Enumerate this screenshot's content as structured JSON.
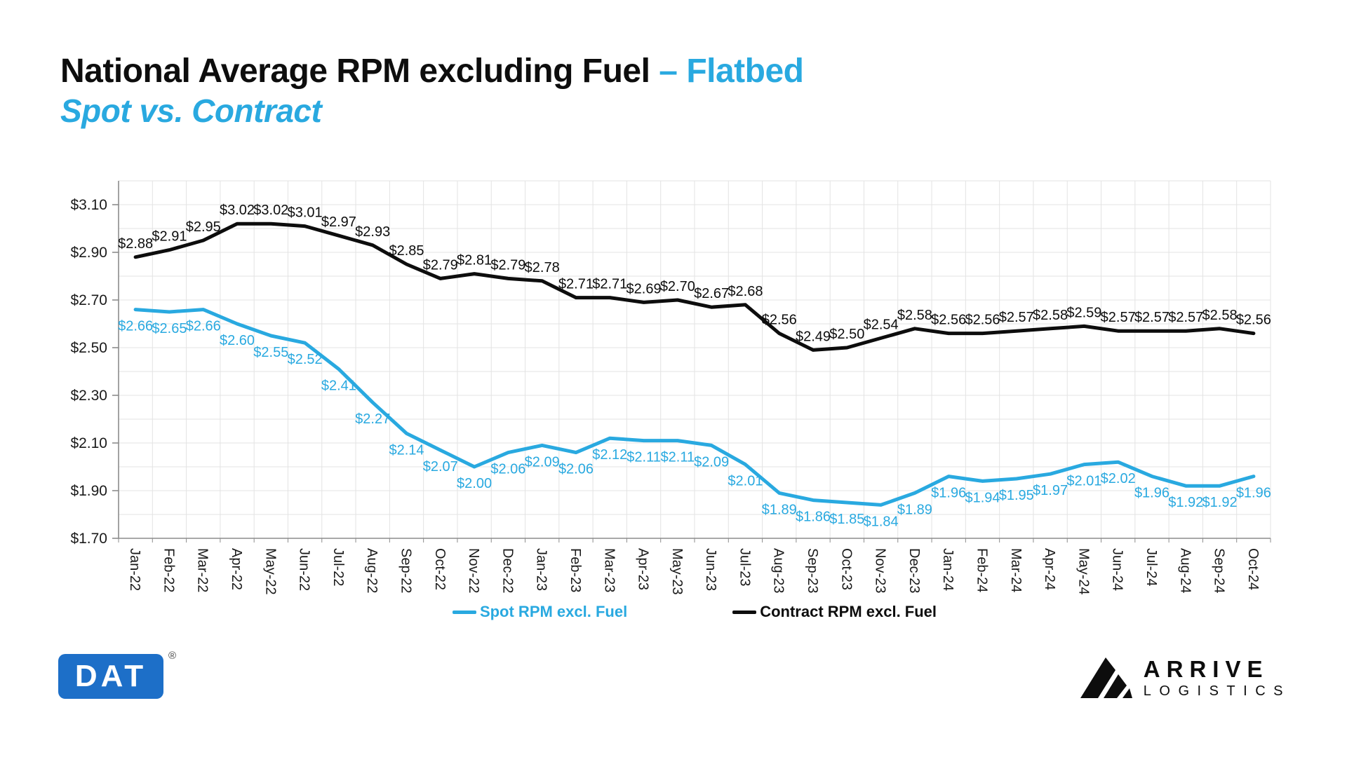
{
  "title": {
    "main": "National Average RPM excluding Fuel ",
    "accent": "– Flatbed",
    "subtitle": "Spot vs. Contract",
    "accent_color": "#29A9E0",
    "text_color": "#0D0D0D"
  },
  "chart_data": {
    "type": "line",
    "title": "National Average RPM excluding Fuel – Flatbed, Spot vs. Contract",
    "categories": [
      "Jan-22",
      "Feb-22",
      "Mar-22",
      "Apr-22",
      "May-22",
      "Jun-22",
      "Jul-22",
      "Aug-22",
      "Sep-22",
      "Oct-22",
      "Nov-22",
      "Dec-22",
      "Jan-23",
      "Feb-23",
      "Mar-23",
      "Apr-23",
      "May-23",
      "Jun-23",
      "Jul-23",
      "Aug-23",
      "Sep-23",
      "Oct-23",
      "Nov-23",
      "Dec-23",
      "Jan-24",
      "Feb-24",
      "Mar-24",
      "Apr-24",
      "May-24",
      "Jun-24",
      "Jul-24",
      "Aug-24",
      "Sep-24",
      "Oct-24"
    ],
    "series": [
      {
        "name": "Spot RPM excl. Fuel",
        "color": "#29A9E0",
        "label_position": "below",
        "values": [
          2.66,
          2.65,
          2.66,
          2.6,
          2.55,
          2.52,
          2.41,
          2.27,
          2.14,
          2.07,
          2.0,
          2.06,
          2.09,
          2.06,
          2.12,
          2.11,
          2.11,
          2.09,
          2.01,
          1.89,
          1.86,
          1.85,
          1.84,
          1.89,
          1.96,
          1.94,
          1.95,
          1.97,
          2.01,
          2.02,
          1.96,
          1.92,
          1.92,
          1.96
        ],
        "labels": [
          "$2.66",
          "$2.65",
          "$2.66",
          "$2.60",
          "$2.55",
          "$2.52",
          "$2.41",
          "$2.27",
          "$2.14",
          "$2.07",
          "$2.00",
          "$2.06",
          "$2.09",
          "$2.06",
          "$2.12",
          "$2.11",
          "$2.11",
          "$2.09",
          "$2.01",
          "$1.89",
          "$1.86",
          "$1.85",
          "$1.84",
          "$1.89",
          "$1.96",
          "$1.94",
          "$1.95",
          "$1.97",
          "$2.01",
          "$2.02",
          "$1.96",
          "$1.92",
          "$1.92",
          "$1.96"
        ]
      },
      {
        "name": "Contract RPM excl. Fuel",
        "color": "#0D0D0D",
        "label_position": "above",
        "values": [
          2.88,
          2.91,
          2.95,
          3.02,
          3.02,
          3.01,
          2.97,
          2.93,
          2.85,
          2.79,
          2.81,
          2.79,
          2.78,
          2.71,
          2.71,
          2.69,
          2.7,
          2.67,
          2.68,
          2.56,
          2.49,
          2.5,
          2.54,
          2.58,
          2.56,
          2.56,
          2.57,
          2.58,
          2.59,
          2.57,
          2.57,
          2.57,
          2.58,
          2.56
        ],
        "labels": [
          "$2.88",
          "$2.91",
          "$2.95",
          "$3.02",
          "$3.02",
          "$3.01",
          "$2.97",
          "$2.93",
          "$2.85",
          "$2.79",
          "$2.81",
          "$2.79",
          "$2.78",
          "$2.71",
          "$2.71",
          "$2.69",
          "$2.70",
          "$2.67",
          "$2.68",
          "$2.56",
          "$2.49",
          "$2.50",
          "$2.54",
          "$2.58",
          "$2.56",
          "$2.56",
          "$2.57",
          "$2.58",
          "$2.59",
          "$2.57",
          "$2.57",
          "$2.57",
          "$2.58",
          "$2.56"
        ]
      }
    ],
    "ylim": [
      1.7,
      3.2
    ],
    "yticks": [
      {
        "label": "$3.10",
        "value": 3.1
      },
      {
        "label": "$2.90",
        "value": 2.9
      },
      {
        "label": "$2.70",
        "value": 2.7
      },
      {
        "label": "$2.50",
        "value": 2.5
      },
      {
        "label": "$2.30",
        "value": 2.3
      },
      {
        "label": "$2.10",
        "value": 2.1
      },
      {
        "label": "$1.90",
        "value": 1.9
      },
      {
        "label": "$1.70",
        "value": 1.7
      }
    ],
    "grid": true,
    "legend_position": "bottom",
    "gridline_color": "#E3E3E3",
    "axis_color": "#8C8C8C",
    "tick_text_color": "#1A1A1A"
  },
  "footer": {
    "dat": {
      "text": "DAT",
      "registered": "®",
      "bg": "#1D6FC8"
    },
    "arrive": {
      "line1": "ARRIVE",
      "line2": "LOGISTICS"
    }
  }
}
